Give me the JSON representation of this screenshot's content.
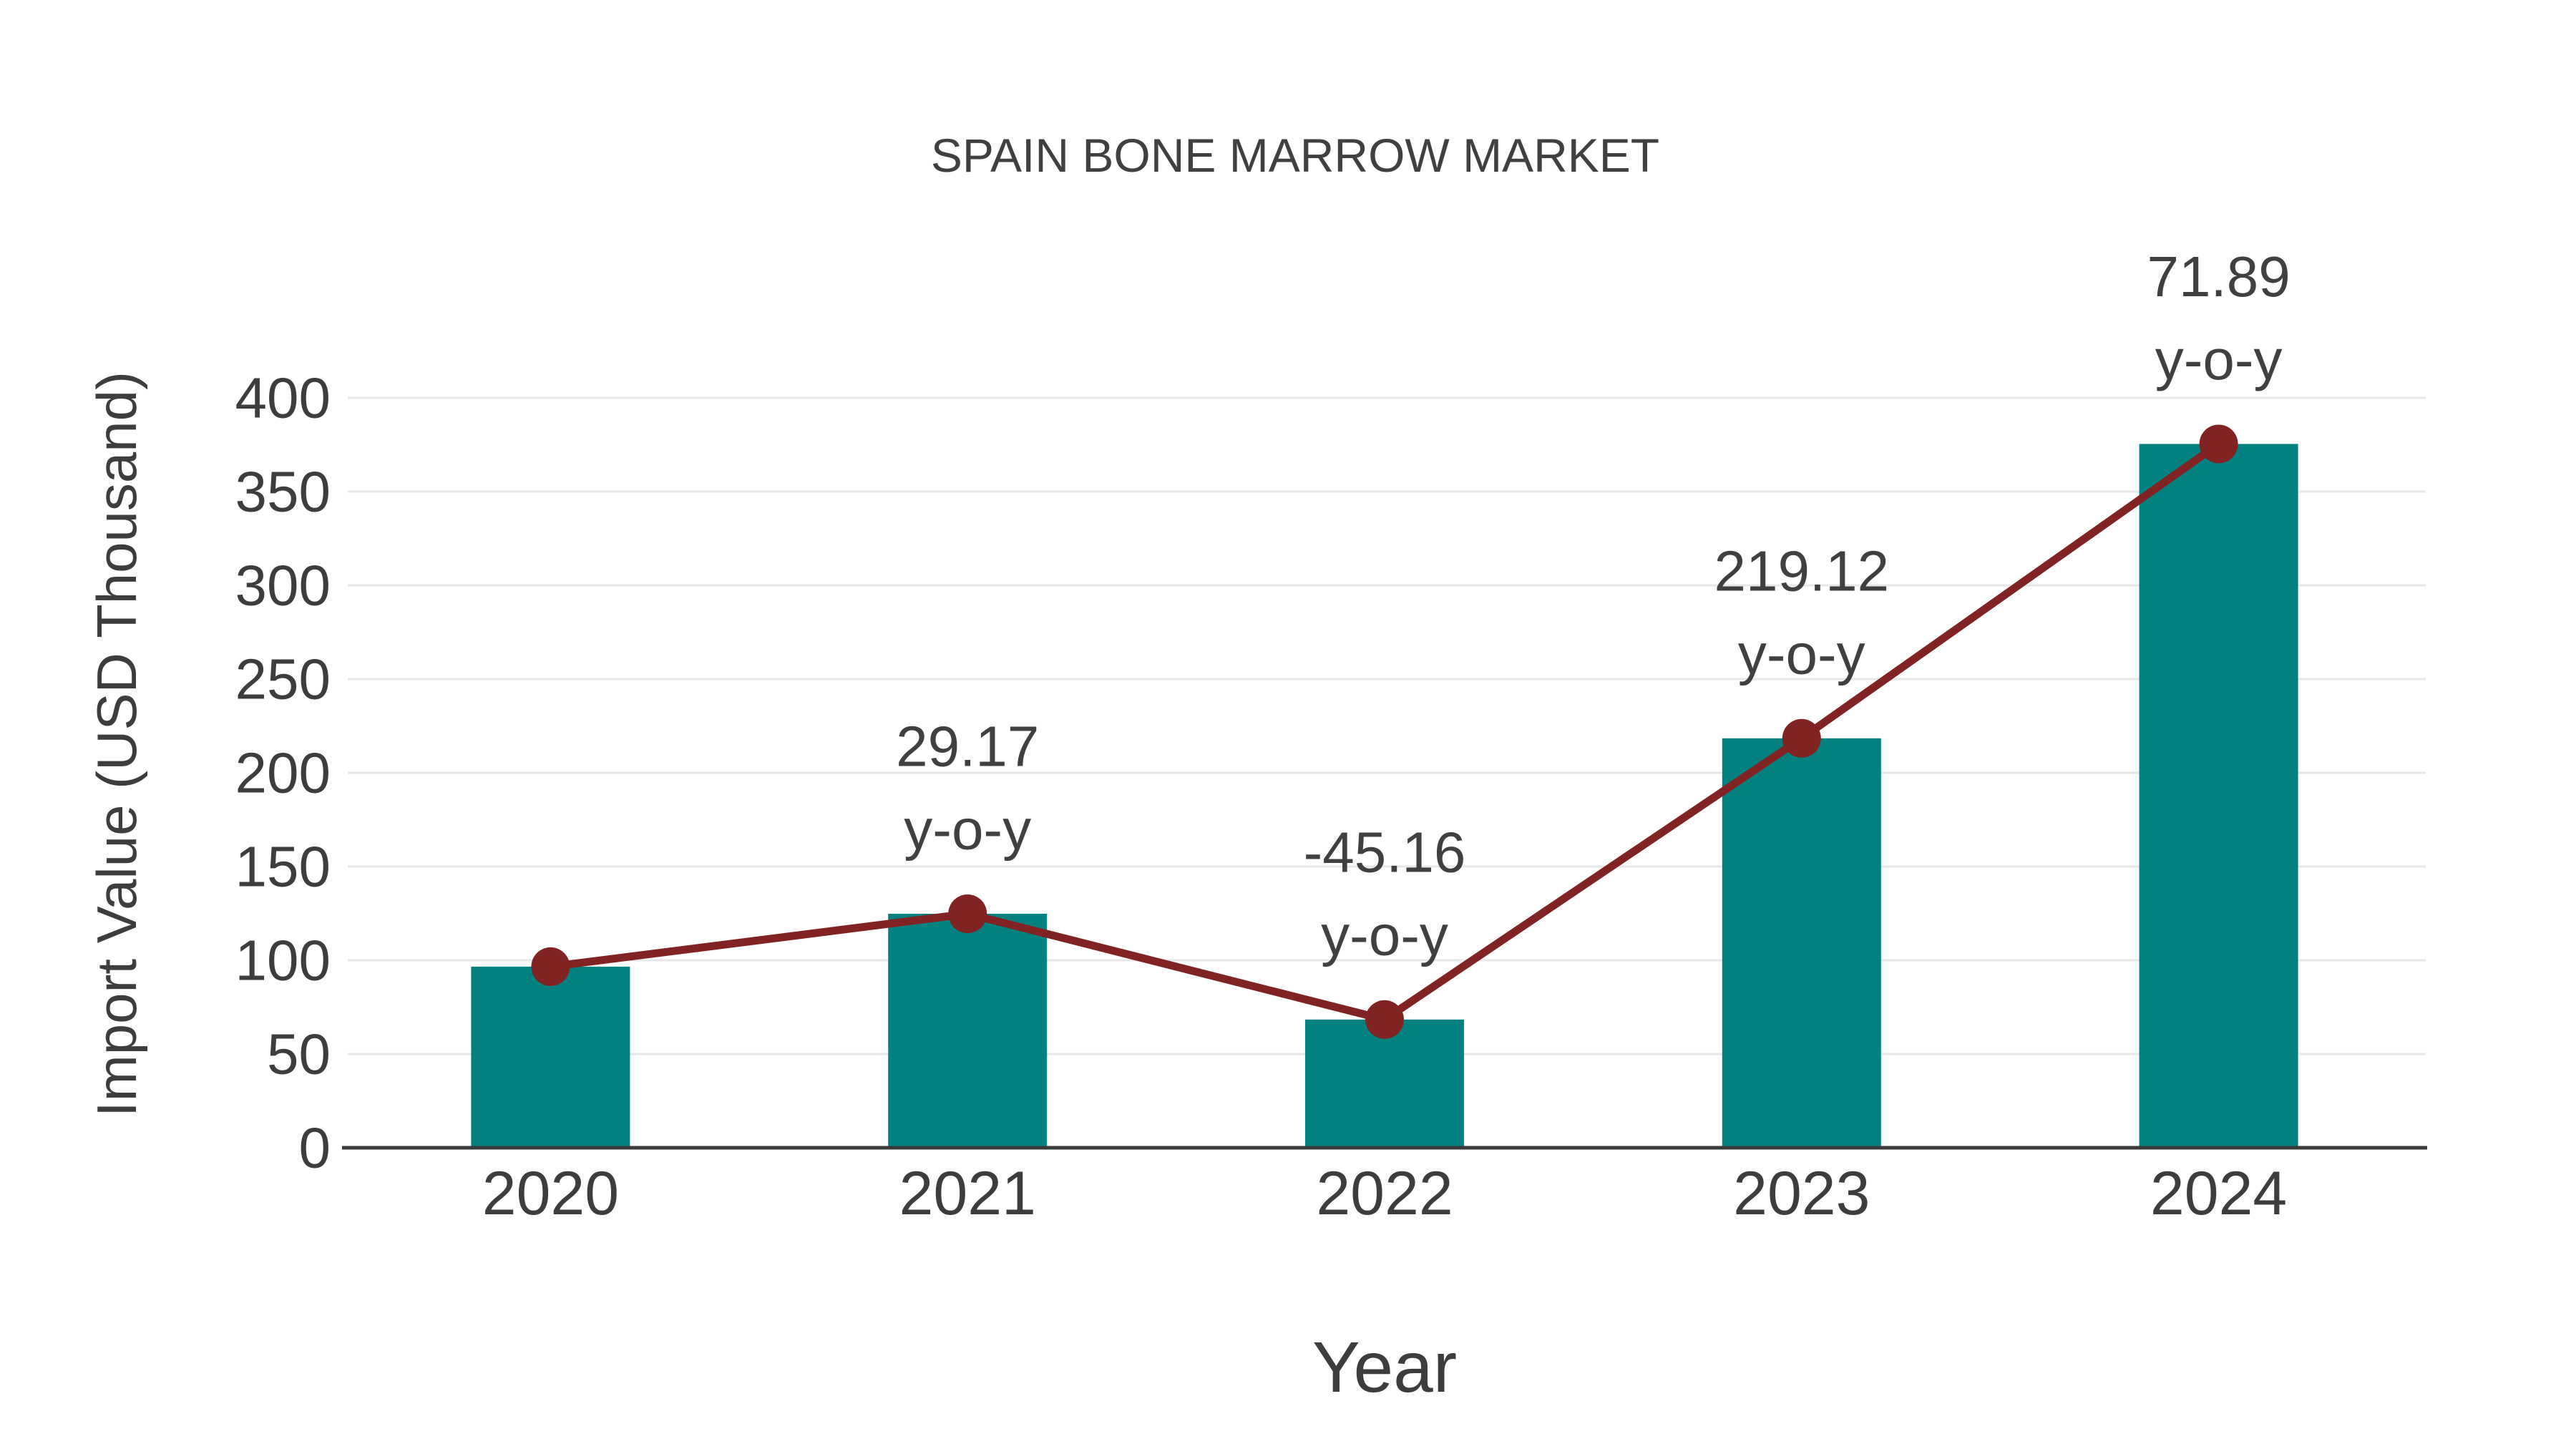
{
  "chart_data": {
    "type": "bar",
    "subtype": "bar-with-line-overlay",
    "title": "SPAIN BONE MARROW MARKET",
    "xlabel": "Year",
    "ylabel": "Import Value (USD Thousand)",
    "categories": [
      "2020",
      "2021",
      "2022",
      "2023",
      "2024"
    ],
    "series": [
      {
        "name": "Import Value (bars)",
        "type": "bar",
        "values": [
          96.6,
          124.8,
          68.4,
          218.4,
          375.4
        ]
      },
      {
        "name": "Import Value (trend line)",
        "type": "line",
        "values": [
          96.6,
          124.8,
          68.4,
          218.4,
          375.4
        ]
      }
    ],
    "annotations": [
      {
        "category": "2021",
        "lines": [
          "29.17",
          "y-o-y"
        ]
      },
      {
        "category": "2022",
        "lines": [
          "-45.16",
          "y-o-y"
        ]
      },
      {
        "category": "2023",
        "lines": [
          "219.12",
          "y-o-y"
        ]
      },
      {
        "category": "2024",
        "lines": [
          "71.89",
          "y-o-y"
        ]
      }
    ],
    "yticks": [
      0,
      50,
      100,
      150,
      200,
      250,
      300,
      350,
      400
    ],
    "ylim": [
      0,
      400
    ],
    "grid": true,
    "legend_position": "none",
    "colors": {
      "bar_fill": "#028180",
      "line_stroke": "#822323",
      "marker_fill": "#822323",
      "text": "#404040",
      "tick_text": "#3d3d3d",
      "gridline": "#e7e7e7",
      "axis_line": "#3a3a3a",
      "background": "#ffffff"
    }
  }
}
